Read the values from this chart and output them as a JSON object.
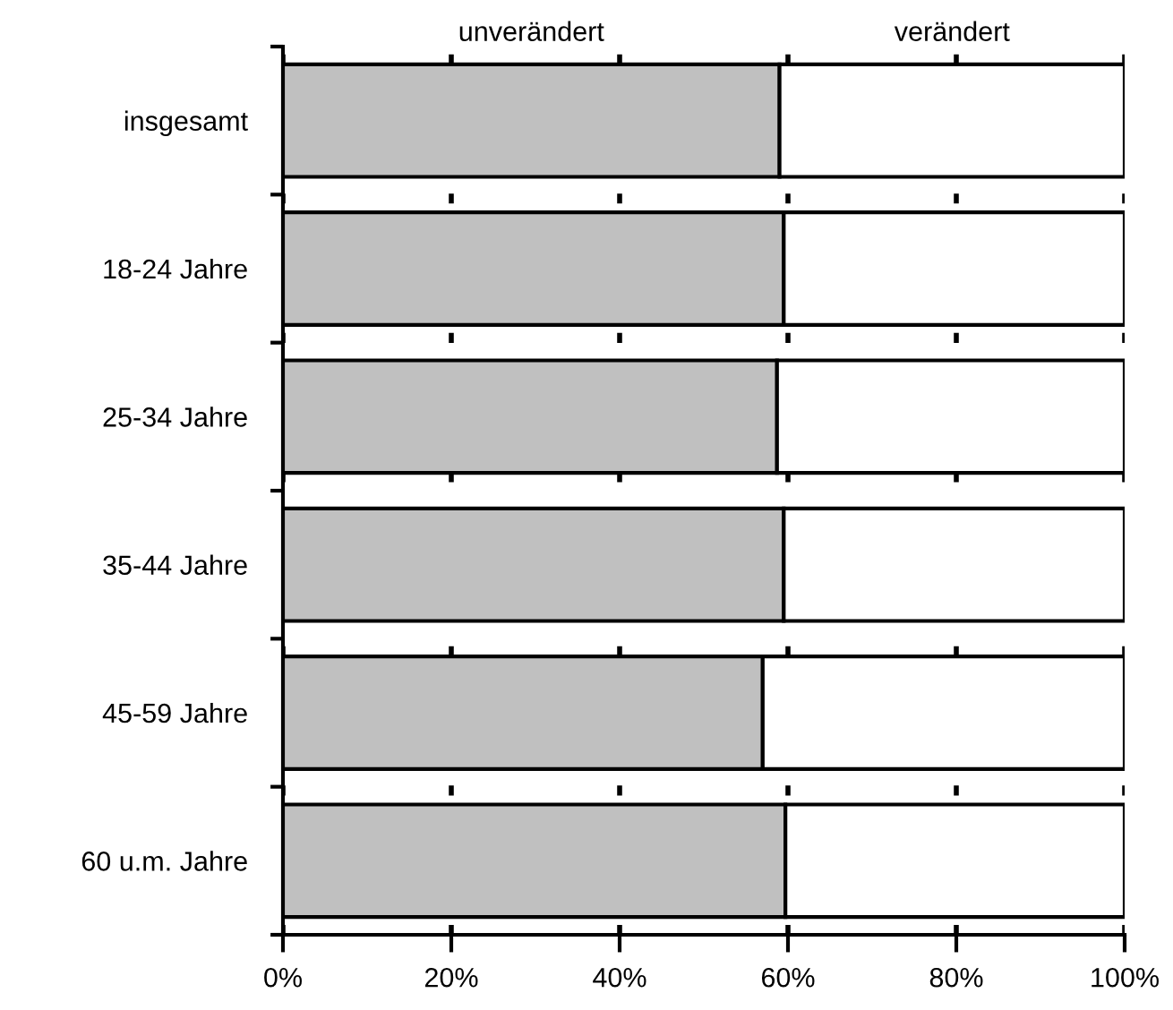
{
  "chart_data": {
    "type": "bar",
    "orientation": "horizontal",
    "stacked": true,
    "categories": [
      "insgesamt",
      "18-24 Jahre",
      "25-34 Jahre",
      "35-44 Jahre",
      "45-59 Jahre",
      "60 u.m. Jahre"
    ],
    "series": [
      {
        "name": "unverändert",
        "color": "#c0c0c0",
        "values": [
          59.0,
          59.5,
          58.7,
          59.5,
          57.0,
          59.7
        ]
      },
      {
        "name": "verändert",
        "color": "#ffffff",
        "values": [
          41.0,
          40.5,
          41.3,
          40.5,
          43.0,
          40.3
        ]
      }
    ],
    "xlim": [
      0,
      100
    ],
    "xticks": [
      {
        "value": 0,
        "label": "0%"
      },
      {
        "value": 20,
        "label": "20%"
      },
      {
        "value": 40,
        "label": "40%"
      },
      {
        "value": 60,
        "label": "60%"
      },
      {
        "value": 80,
        "label": "80%"
      },
      {
        "value": 100,
        "label": "100%"
      }
    ],
    "grid": "x",
    "legend": false
  }
}
